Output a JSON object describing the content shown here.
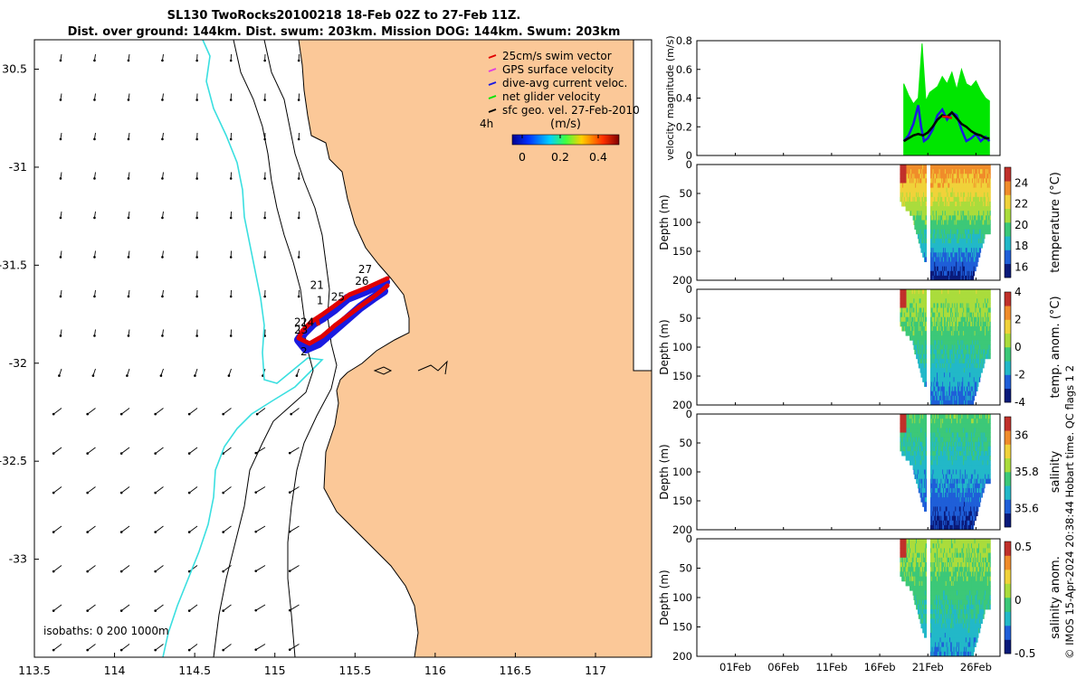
{
  "title": {
    "line1": "SL130 TwoRocks20100218 18-Feb 02Z to 27-Feb 11Z.",
    "line2": "Dist. over ground: 144km. Dist. swum: 203km. Mission DOG: 144km. Swum: 203km"
  },
  "colors": {
    "land": "#fbc898",
    "isobath_zero": "#3adfe0",
    "isobath_other": "#000000",
    "swim_vector": "#e00000",
    "gps_surface": "#e040e0",
    "dive_avg": "#1a1ae0",
    "net_glider": "#00e600",
    "sfc_geo": "#000000"
  },
  "map": {
    "legend": [
      {
        "label": "25cm/s swim vector",
        "color": "#e00000"
      },
      {
        "label": "GPS surface velocity",
        "color": "#e040e0"
      },
      {
        "label": "dive-avg current veloc.",
        "color": "#1a1ae0"
      },
      {
        "label": "net glider velocity",
        "color": "#00e600"
      },
      {
        "label": "sfc geo. vel. 27-Feb-2010",
        "color": "#000000"
      }
    ],
    "label_4h": "4h",
    "colorbar_title": "(m/s)",
    "colorbar_ticks": [
      "0",
      "0.2",
      "0.4"
    ],
    "isobath_note": "isobaths: 0   200  1000m",
    "day_labels": [
      {
        "text": "27",
        "lon": 115.52,
        "lat": -31.54
      },
      {
        "text": "26",
        "lon": 115.5,
        "lat": -31.6
      },
      {
        "text": "25",
        "lon": 115.35,
        "lat": -31.68
      },
      {
        "text": "21",
        "lon": 115.22,
        "lat": -31.62
      },
      {
        "text": "1",
        "lon": 115.26,
        "lat": -31.7
      },
      {
        "text": "24",
        "lon": 115.16,
        "lat": -31.81
      },
      {
        "text": "2",
        "lon": 115.12,
        "lat": -31.81
      },
      {
        "text": "23",
        "lon": 115.12,
        "lat": -31.85
      },
      {
        "text": "2",
        "lon": 115.16,
        "lat": -31.96
      }
    ],
    "x_ticks": [
      "113.5",
      "114",
      "114.5",
      "115",
      "115.5",
      "116",
      "116.5",
      "117"
    ],
    "y_ticks": [
      "30.5",
      "-31",
      "-31.5",
      "-32",
      "-32.5",
      "-33"
    ]
  },
  "chart_data": [
    {
      "type": "line",
      "ylabel": "velocity magnitude (m/s)",
      "ylim": [
        0,
        0.8
      ],
      "yticks": [
        "0",
        "0.2",
        "0.4",
        "0.6",
        "0.8"
      ],
      "series": [
        {
          "name": "net glider velocity",
          "x": [
            18.5,
            19,
            19.5,
            20,
            20.4,
            20.8,
            21.2,
            22,
            22.5,
            23,
            23.5,
            24,
            24.5,
            25,
            25.5,
            26,
            26.5,
            27,
            27.4
          ],
          "values": [
            0.5,
            0.42,
            0.36,
            0.4,
            0.78,
            0.38,
            0.44,
            0.48,
            0.55,
            0.5,
            0.58,
            0.46,
            0.6,
            0.5,
            0.48,
            0.52,
            0.45,
            0.4,
            0.38
          ]
        },
        {
          "name": "dive-avg current veloc.",
          "x": [
            18.5,
            19,
            19.5,
            20,
            20.3,
            20.6,
            21,
            21.5,
            22,
            22.5,
            23,
            23.5,
            24,
            24.5,
            25,
            25.5,
            26,
            26.5,
            27,
            27.4
          ],
          "values": [
            0.1,
            0.14,
            0.22,
            0.35,
            0.2,
            0.1,
            0.12,
            0.18,
            0.28,
            0.32,
            0.25,
            0.3,
            0.28,
            0.18,
            0.1,
            0.12,
            0.15,
            0.1,
            0.13,
            0.1
          ]
        },
        {
          "name": "sfc geo. vel. 27-Feb-2010",
          "x": [
            18.5,
            19,
            19.5,
            20,
            20.5,
            21,
            21.5,
            22,
            22.5,
            23,
            23.5,
            24,
            24.5,
            25,
            25.5,
            26,
            26.5,
            27,
            27.4
          ],
          "values": [
            0.1,
            0.12,
            0.14,
            0.15,
            0.14,
            0.16,
            0.2,
            0.25,
            0.28,
            0.27,
            0.3,
            0.26,
            0.22,
            0.2,
            0.17,
            0.15,
            0.14,
            0.12,
            0.12
          ]
        },
        {
          "name": "25cm/s swim vector",
          "x": [
            22.5,
            23,
            23.5
          ],
          "values": [
            0.27,
            0.27,
            0.26
          ]
        }
      ]
    },
    {
      "type": "heatmap",
      "ylabel": "Depth (m)",
      "clabel": "temperature (°C)",
      "ylim": [
        200,
        0
      ],
      "yticks": [
        "0",
        "50",
        "100",
        "150",
        "200"
      ],
      "cticks": [
        "16",
        "18",
        "20",
        "22",
        "24"
      ],
      "crange": [
        15,
        25.5
      ],
      "surface": 23.5,
      "deep": 15.5,
      "colors": [
        "#0a1a7a",
        "#1f5fd8",
        "#22b8c8",
        "#3cc878",
        "#aadc3c",
        "#f0d23a",
        "#f08c2a",
        "#c0302a"
      ]
    },
    {
      "type": "heatmap",
      "ylabel": "Depth (m)",
      "clabel": "temp. anom. (°C)",
      "ylim": [
        200,
        0
      ],
      "yticks": [
        "0",
        "50",
        "100",
        "150",
        "200"
      ],
      "cticks": [
        "-4",
        "-2",
        "0",
        "2",
        "4"
      ],
      "crange": [
        -4,
        4
      ],
      "surface": 0.6,
      "deep": -2.5,
      "colors": [
        "#0a1a7a",
        "#1f5fd8",
        "#22b8c8",
        "#3cc878",
        "#aadc3c",
        "#f0d23a",
        "#f08c2a",
        "#c0302a"
      ]
    },
    {
      "type": "heatmap",
      "ylabel": "Depth (m)",
      "clabel": "salinity",
      "ylim": [
        200,
        0
      ],
      "yticks": [
        "0",
        "50",
        "100",
        "150",
        "200"
      ],
      "cticks": [
        "35.6",
        "35.8",
        "36"
      ],
      "crange": [
        35.5,
        36.1
      ],
      "surface": 35.78,
      "deep": 35.55,
      "colors": [
        "#0a1a7a",
        "#1f5fd8",
        "#22b8c8",
        "#3cc878",
        "#aadc3c",
        "#f0d23a",
        "#f08c2a",
        "#c0302a"
      ]
    },
    {
      "type": "heatmap",
      "ylabel": "Depth (m)",
      "clabel": "salinity anom.",
      "ylim": [
        200,
        0
      ],
      "yticks": [
        "0",
        "50",
        "100",
        "150",
        "200"
      ],
      "cticks": [
        "-0.5",
        "0",
        "0.5"
      ],
      "crange": [
        -0.5,
        0.55
      ],
      "surface": 0.08,
      "deep": -0.25,
      "colors": [
        "#0a1a7a",
        "#1f5fd8",
        "#22b8c8",
        "#3cc878",
        "#aadc3c",
        "#f0d23a",
        "#f08c2a",
        "#c0302a"
      ]
    }
  ],
  "time_axis": {
    "range_days": [
      -3,
      28.5
    ],
    "ticks": [
      {
        "label": "01Feb",
        "day": 1
      },
      {
        "label": "06Feb",
        "day": 6
      },
      {
        "label": "11Feb",
        "day": 11
      },
      {
        "label": "16Feb",
        "day": 16
      },
      {
        "label": "21Feb",
        "day": 21
      },
      {
        "label": "26Feb",
        "day": 26
      }
    ],
    "data_start_day": 18.1,
    "data_end_day": 27.5
  },
  "footer_note": "© IMOS 15-Apr-2024 20:38:44 Hobart time. QC flags 1  2"
}
